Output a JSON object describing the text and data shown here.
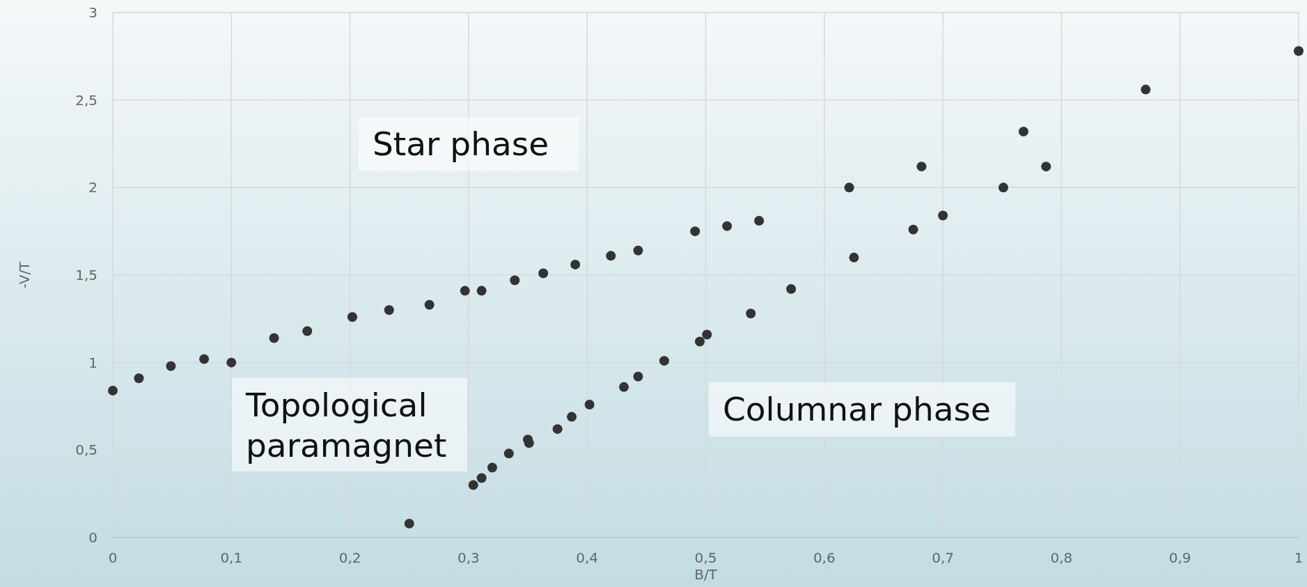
{
  "chart_data": {
    "type": "scatter",
    "xlabel": "B/T",
    "ylabel": "-V/T",
    "marker": "circle",
    "grid": true,
    "xlim": [
      0,
      1
    ],
    "ylim": [
      0,
      3
    ],
    "xticks": [
      0,
      {
        "value": 0.1,
        "label": "0,1"
      },
      {
        "value": 0.2,
        "label": "0,2"
      },
      {
        "value": 0.3,
        "label": "0,3"
      },
      {
        "value": 0.4,
        "label": "0,4"
      },
      {
        "value": 0.5,
        "label": "0,5"
      },
      {
        "value": 0.6,
        "label": "0,6"
      },
      {
        "value": 0.7,
        "label": "0,7"
      },
      {
        "value": 0.8,
        "label": "0,8"
      },
      {
        "value": 0.9,
        "label": "0,9"
      },
      1
    ],
    "yticks": [
      0,
      {
        "value": 0.5,
        "label": "0,5"
      },
      1,
      {
        "value": 1.5,
        "label": "1,5"
      },
      2,
      {
        "value": 2.5,
        "label": "2,5"
      },
      3
    ],
    "annotations": [
      "Star phase",
      "Topological paramagnet",
      "Columnar phase"
    ],
    "series": [
      {
        "color": "#333333",
        "x": [
          0,
          0.022,
          0.049,
          0.077,
          0.1,
          0.136,
          0.164,
          0.202,
          0.233,
          0.267,
          0.297,
          0.311,
          0.339,
          0.363,
          0.39,
          0.42,
          0.443,
          0.491,
          0.518,
          0.545,
          0.621,
          0.682,
          0.768,
          0.871,
          1.0
        ],
        "values": [
          0.84,
          0.91,
          0.98,
          1.02,
          1.0,
          1.14,
          1.18,
          1.26,
          1.3,
          1.33,
          1.41,
          1.41,
          1.47,
          1.51,
          1.56,
          1.61,
          1.64,
          1.75,
          1.78,
          1.81,
          2.0,
          2.12,
          2.32,
          2.56,
          2.78
        ]
      },
      {
        "color": "#333333",
        "x": [
          0.25,
          0.304,
          0.311,
          0.32,
          0.334,
          0.35,
          0.351,
          0.375,
          0.387,
          0.402,
          0.431,
          0.443,
          0.465,
          0.495,
          0.501,
          0.538,
          0.572,
          0.625,
          0.675,
          0.7,
          0.751,
          0.787
        ],
        "values": [
          0.08,
          0.3,
          0.34,
          0.4,
          0.48,
          0.56,
          0.54,
          0.62,
          0.69,
          0.76,
          0.86,
          0.92,
          1.01,
          1.12,
          1.16,
          1.28,
          1.42,
          1.6,
          1.76,
          1.84,
          2.0,
          2.12
        ]
      }
    ]
  }
}
